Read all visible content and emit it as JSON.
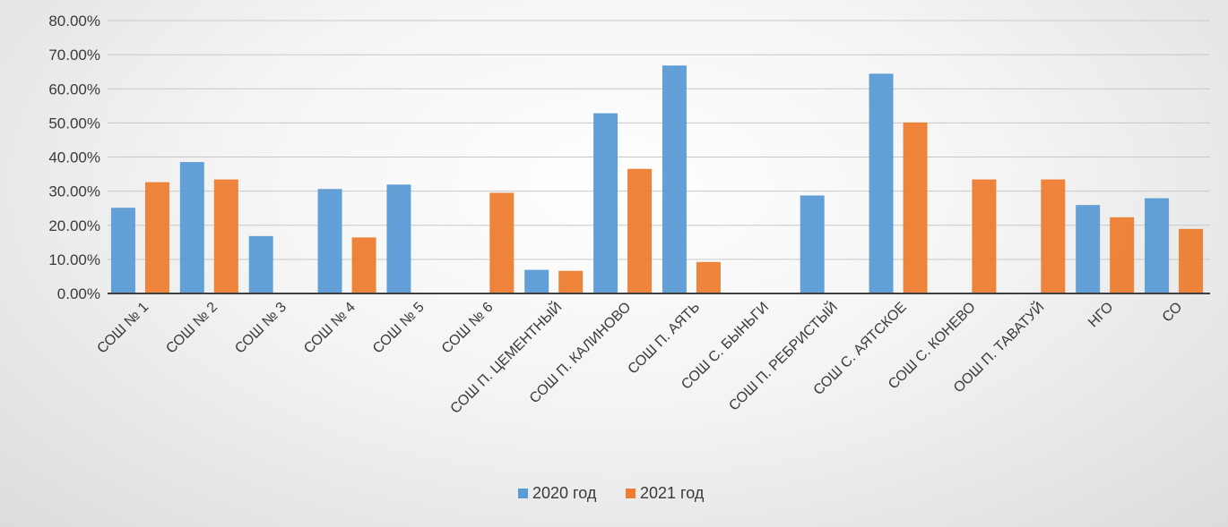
{
  "chart_data": {
    "type": "bar",
    "categories": [
      "СОШ № 1",
      "СОШ № 2",
      "СОШ № 3",
      "СОШ № 4",
      "СОШ № 5",
      "СОШ № 6",
      "СОШ П. ЦЕМЕНТНЫЙ",
      "СОШ П. КАЛИНОВО",
      "СОШ П. АЯТЬ",
      "СОШ С. БЫНЬГИ",
      "СОШ П. РЕБРИСТЫЙ",
      "СОШ С. АЯТСКОЕ",
      "СОШ С. КОНЕВО",
      "ООШ П. ТАВАТУЙ",
      "НГО",
      "СО"
    ],
    "series": [
      {
        "name": "2020 год",
        "color": "#5b9bd5",
        "values": [
          0.25,
          0.384,
          0.167,
          0.305,
          0.318,
          0,
          0.068,
          0.527,
          0.667,
          0,
          0.286,
          0.643,
          0,
          0,
          0.258,
          0.278
        ]
      },
      {
        "name": "2021 год",
        "color": "#ed7d31",
        "values": [
          0.325,
          0.333,
          0,
          0.163,
          0,
          0.294,
          0.065,
          0.364,
          0.091,
          0,
          0,
          0.5,
          0.333,
          0.333,
          0.222,
          0.188
        ]
      }
    ],
    "y_ticks": [
      "0.00%",
      "10.00%",
      "20.00%",
      "30.00%",
      "40.00%",
      "50.00%",
      "60.00%",
      "70.00%",
      "80.00%"
    ],
    "ylim": [
      0,
      0.8
    ],
    "title": "",
    "xlabel": "",
    "ylabel": "",
    "grid": true,
    "legend_position": "bottom"
  }
}
